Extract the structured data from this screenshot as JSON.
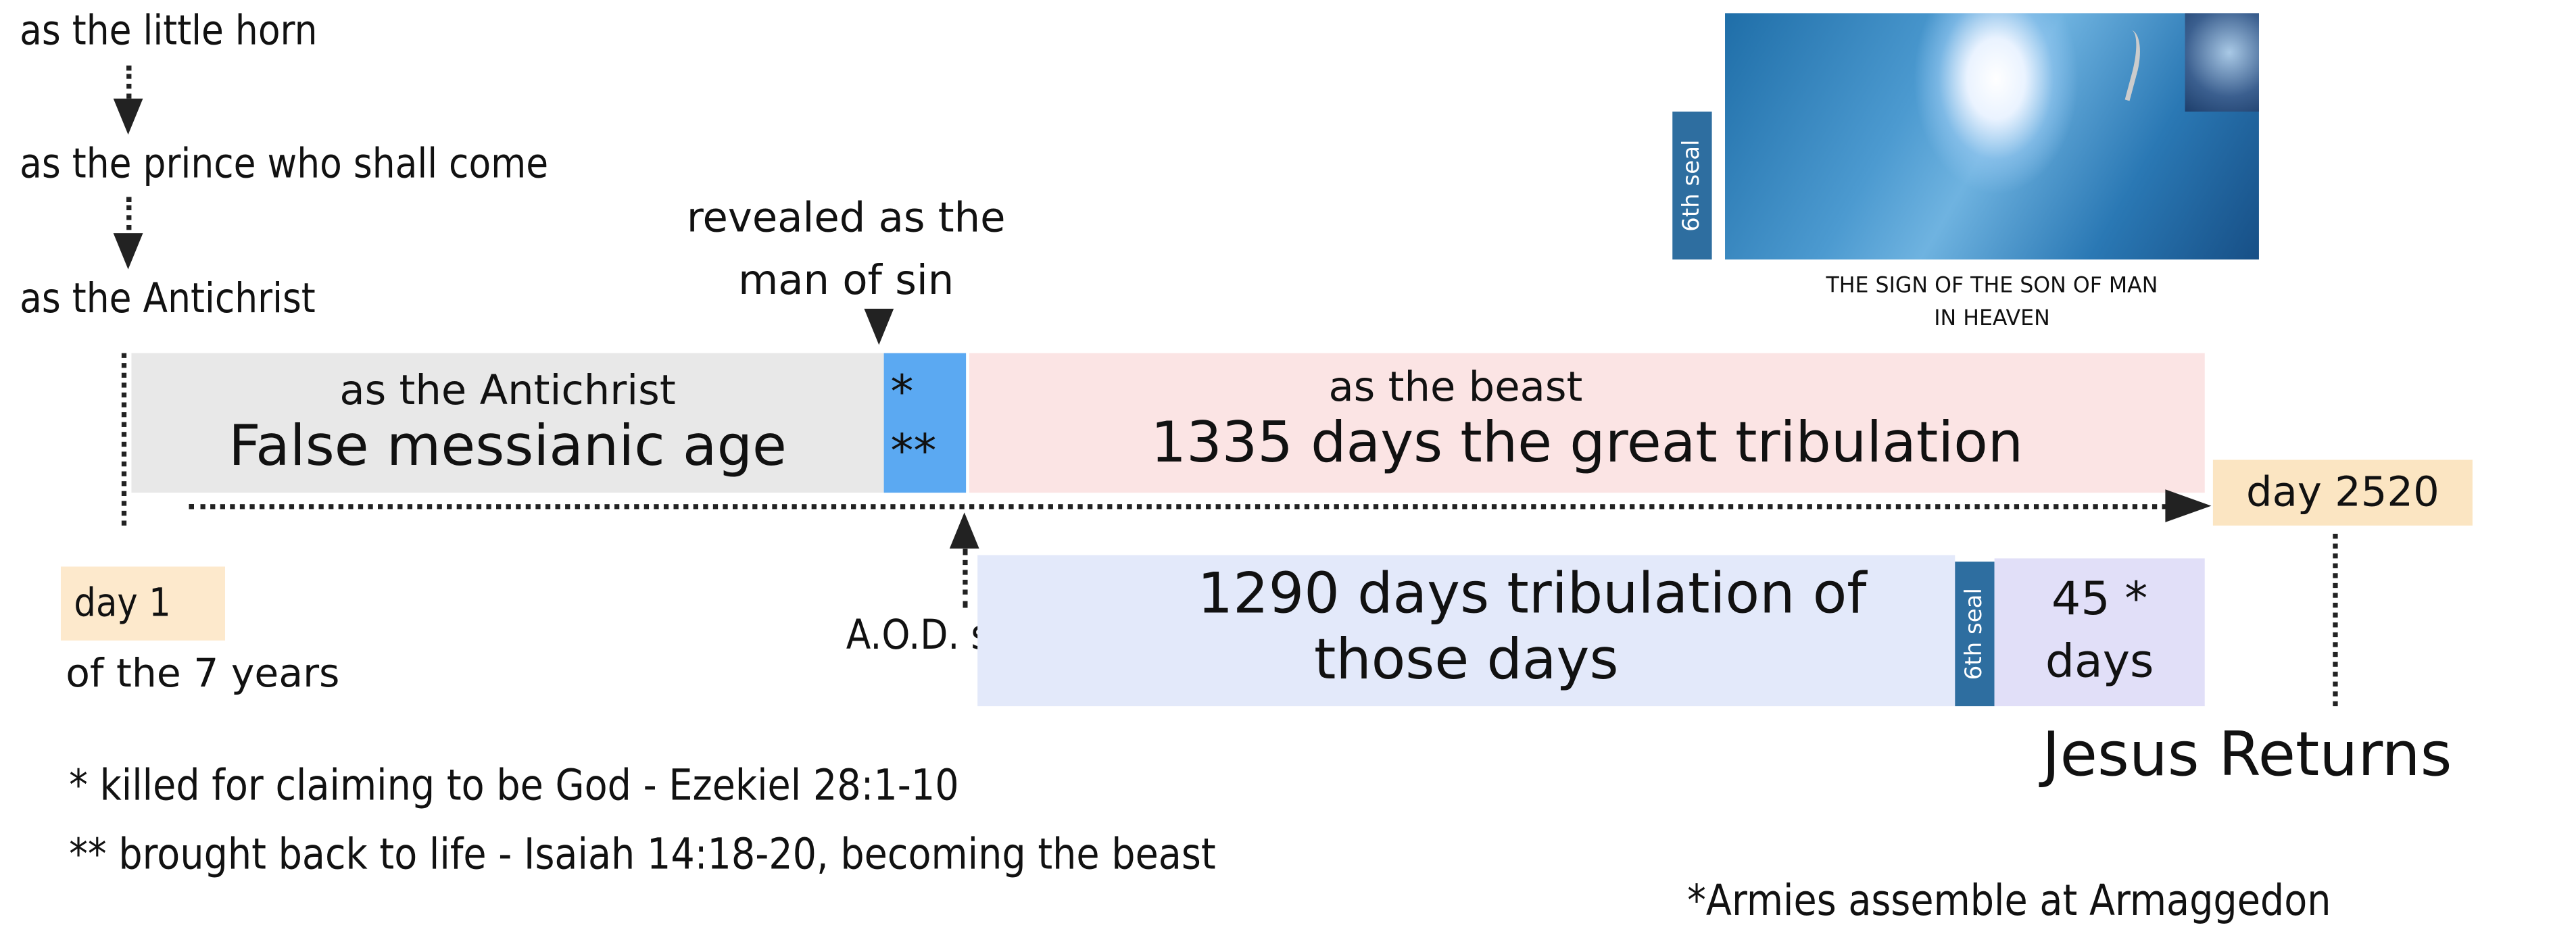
{
  "stages": {
    "little_horn": "as the little horn",
    "prince": "as the prince who shall come",
    "antichrist": "as the Antichrist",
    "revealed_line1": "revealed as the",
    "revealed_line2": "man of sin"
  },
  "image": {
    "seal_label": "6th seal",
    "caption_line1": "THE SIGN OF THE SON OF MAN",
    "caption_line2": "IN HEAVEN"
  },
  "timeline": {
    "gray_box": {
      "subtitle": "as the Antichrist",
      "title": "False messianic age",
      "color": "#e8e8e8"
    },
    "blue_box": {
      "line1": "*",
      "line2": "**",
      "color": "#5ba9f2"
    },
    "pink_box": {
      "subtitle": "as the beast",
      "title": "1335 days the great tribulation",
      "color": "#fbe4e4"
    },
    "day_end": {
      "label": "day 2520",
      "color": "#fbe5c2"
    },
    "day_start": {
      "label": "day 1",
      "sublabel": "of the 7 years",
      "color": "#fde9cc"
    },
    "aod": "A.O.D. setup",
    "lower_box": {
      "line1": "1290 days tribulation of",
      "line2": "those days",
      "color": "#e3e9fa"
    },
    "lower_seal": "6th seal",
    "days45": {
      "line1": "45 *",
      "line2": "days",
      "color": "#e1dff8"
    },
    "jesus_returns": "Jesus Returns"
  },
  "footnotes": {
    "note1": "*  killed for claiming to be God - Ezekiel 28:1-10",
    "note2": "** brought back to life - Isaiah 14:18-20, becoming the beast",
    "note3": "*Armies assemble at Armaggedon"
  }
}
